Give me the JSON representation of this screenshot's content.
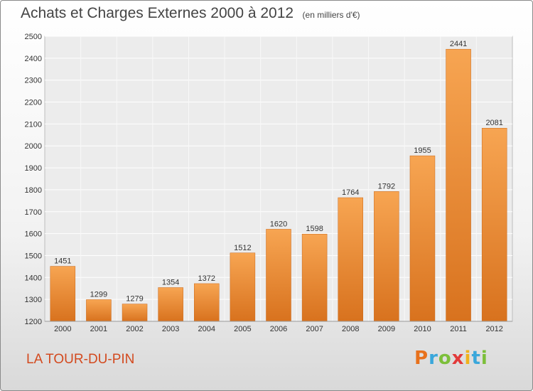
{
  "header": {
    "title": "Achats et Charges Externes 2000 à 2012",
    "subtitle": "(en milliers d'€)"
  },
  "footer": {
    "commune": "LA TOUR-DU-PIN",
    "logo_text": "Proxiti"
  },
  "colors": {
    "bar_top": "#f7a552",
    "bar_bottom": "#d8721e",
    "title": "#444444",
    "commune": "#d34a1f"
  },
  "chart_data": {
    "type": "bar",
    "categories": [
      "2000",
      "2001",
      "2002",
      "2003",
      "2004",
      "2005",
      "2006",
      "2007",
      "2008",
      "2009",
      "2010",
      "2011",
      "2012"
    ],
    "values": [
      1451,
      1299,
      1279,
      1354,
      1372,
      1512,
      1620,
      1598,
      1764,
      1792,
      1955,
      2441,
      2081
    ],
    "ylim": [
      1200,
      2500
    ],
    "yticks": [
      1200,
      1300,
      1400,
      1500,
      1600,
      1700,
      1800,
      1900,
      2000,
      2100,
      2200,
      2300,
      2400,
      2500
    ],
    "grid": true,
    "data_labels": true
  }
}
